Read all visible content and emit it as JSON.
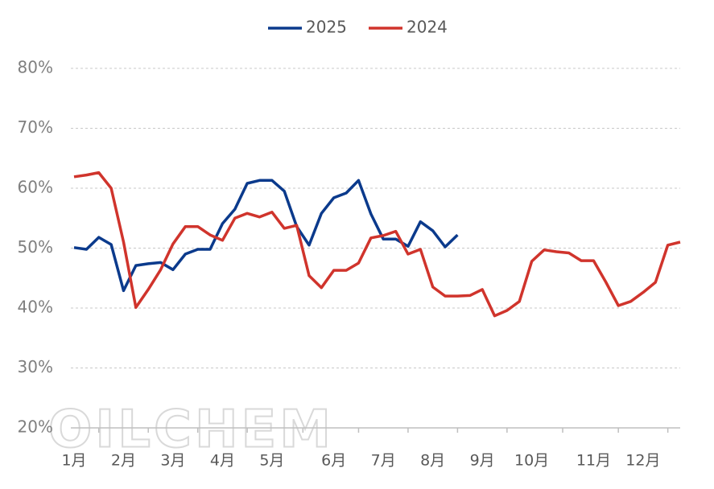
{
  "chart_data": {
    "type": "line",
    "watermark": "OILCHEM",
    "categories": [
      "1月",
      null,
      null,
      null,
      "2月",
      null,
      null,
      null,
      "3月",
      null,
      null,
      null,
      "4月",
      null,
      null,
      null,
      "5月",
      null,
      null,
      null,
      null,
      "6月",
      null,
      null,
      null,
      "7月",
      null,
      null,
      null,
      "8月",
      null,
      null,
      null,
      "9月",
      null,
      null,
      null,
      "10月",
      null,
      null,
      null,
      null,
      "11月",
      null,
      null,
      null,
      "12月",
      null,
      null,
      null
    ],
    "series": [
      {
        "name": "2025",
        "color": "#0b3a8c",
        "values": [
          50.1,
          49.8,
          51.8,
          50.6,
          42.9,
          47.1,
          47.4,
          47.6,
          46.4,
          49.0,
          49.8,
          49.8,
          54.1,
          56.5,
          60.8,
          61.3,
          61.3,
          59.5,
          53.6,
          50.5,
          55.8,
          58.4,
          59.2,
          61.3,
          55.7,
          51.5,
          51.5,
          50.3,
          54.4,
          52.9,
          50.2,
          52.2,
          null,
          null,
          null,
          null,
          null,
          null,
          null,
          null,
          null,
          null,
          null,
          null,
          null,
          null,
          null,
          null,
          null,
          null
        ]
      },
      {
        "name": "2024",
        "color": "#d0342c",
        "values": [
          61.9,
          62.2,
          62.6,
          60.0,
          51.0,
          40.1,
          43.1,
          46.4,
          50.7,
          53.6,
          53.6,
          52.2,
          51.3,
          55.0,
          55.8,
          55.2,
          56.0,
          53.3,
          53.8,
          45.4,
          43.4,
          46.3,
          46.3,
          47.5,
          51.7,
          52.1,
          52.8,
          49.0,
          49.8,
          43.5,
          42.0,
          42.0,
          42.1,
          43.1,
          38.7,
          39.6,
          41.1,
          47.8,
          49.7,
          49.4,
          49.2,
          47.9,
          47.9,
          44.3,
          40.4,
          41.1,
          42.6,
          44.3,
          50.5,
          51.0
        ]
      }
    ],
    "ylim": [
      20,
      80
    ],
    "yticks": [
      {
        "value": 20,
        "label": "20%"
      },
      {
        "value": 30,
        "label": "30%"
      },
      {
        "value": 40,
        "label": "40%"
      },
      {
        "value": 50,
        "label": "50%"
      },
      {
        "value": 60,
        "label": "60%"
      },
      {
        "value": 70,
        "label": "70%"
      },
      {
        "value": 80,
        "label": "80%"
      }
    ],
    "grid": true,
    "legend": "top"
  }
}
